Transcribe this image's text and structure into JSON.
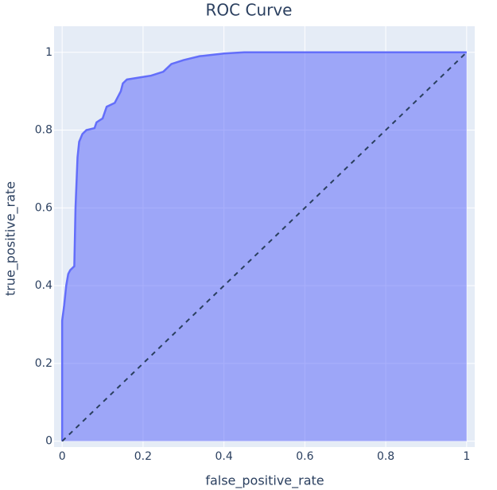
{
  "chart_data": {
    "type": "area",
    "title": "ROC Curve",
    "xlabel": "false_positive_rate",
    "ylabel": "true_positive_rate",
    "x": [
      0,
      0,
      0.005,
      0.01,
      0.015,
      0.02,
      0.03,
      0.033,
      0.038,
      0.042,
      0.05,
      0.06,
      0.08,
      0.085,
      0.1,
      0.11,
      0.13,
      0.14,
      0.145,
      0.15,
      0.16,
      0.19,
      0.22,
      0.25,
      0.27,
      0.3,
      0.32,
      0.34,
      0.4,
      0.45,
      1
    ],
    "y": [
      0,
      0.31,
      0.35,
      0.4,
      0.43,
      0.44,
      0.45,
      0.6,
      0.73,
      0.77,
      0.79,
      0.8,
      0.805,
      0.82,
      0.83,
      0.86,
      0.87,
      0.89,
      0.9,
      0.92,
      0.93,
      0.935,
      0.94,
      0.95,
      0.97,
      0.98,
      0.985,
      0.99,
      0.997,
      1,
      1
    ],
    "color": "#636efa",
    "fill_color": "rgba(99,110,250,0.55)",
    "shapes": [
      {
        "type": "line",
        "x0": 0,
        "y0": 0,
        "x1": 1,
        "y1": 1,
        "dash": "6,6",
        "color": "#2a3f5f"
      }
    ],
    "xlim": [
      -0.02,
      1.02
    ],
    "ylim": [
      -0.015,
      1.067
    ],
    "xticks": [
      0,
      0.2,
      0.4,
      0.6,
      0.8,
      1
    ],
    "yticks": [
      0,
      0.2,
      0.4,
      0.6,
      0.8,
      1
    ],
    "grid": true
  }
}
